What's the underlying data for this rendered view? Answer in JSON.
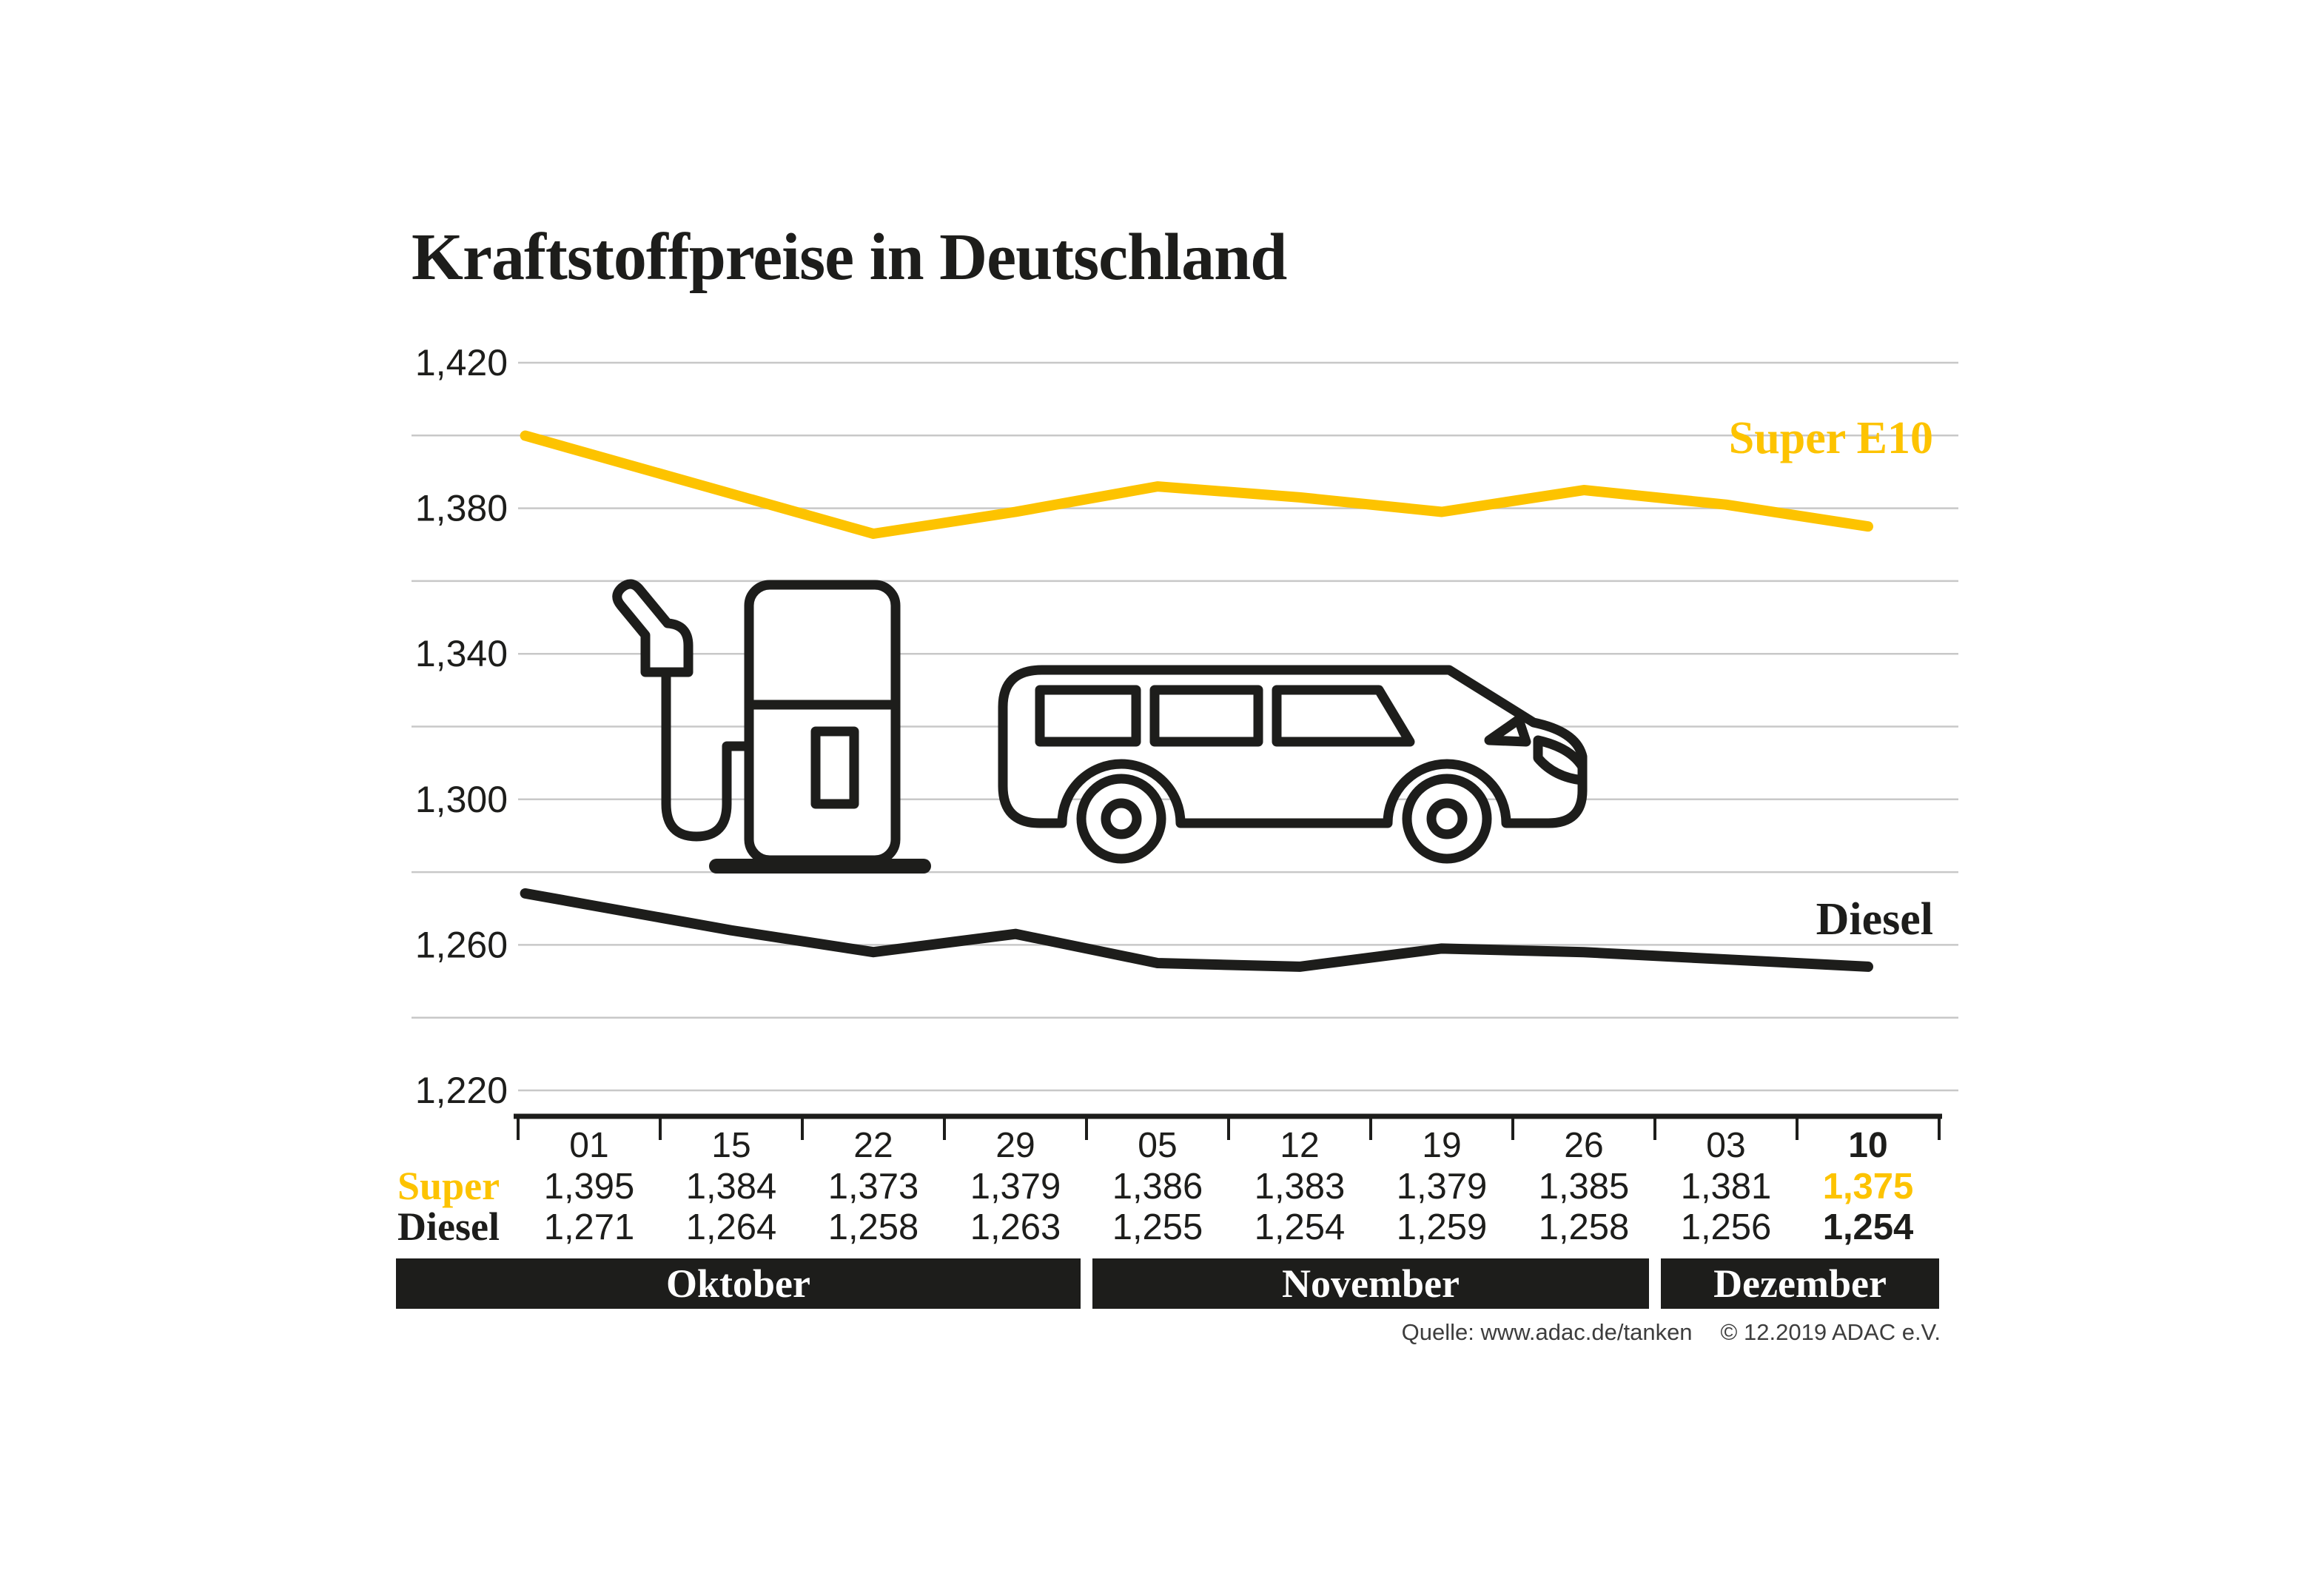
{
  "title": "Kraftstoffpreise in Deutschland",
  "source": {
    "quelle": "Quelle: www.adac.de/tanken",
    "copyright": "© 12.2019  ADAC e.V."
  },
  "colors": {
    "super_yellow": "#fdc300",
    "diesel_black": "#1d1d1b",
    "grid_gray": "#c8c8c8"
  },
  "icons": {
    "pump": "fuel-pump-icon",
    "car": "car-icon"
  },
  "table": {
    "row_labels": [
      "Super",
      "Diesel"
    ]
  },
  "chart_data": {
    "type": "line",
    "title": "Kraftstoffpreise in Deutschland",
    "x": [
      "01",
      "15",
      "22",
      "29",
      "05",
      "12",
      "19",
      "26",
      "03",
      "10"
    ],
    "months": [
      {
        "label": "Oktober",
        "span": 4
      },
      {
        "label": "November",
        "span": 4
      },
      {
        "label": "Dezember",
        "span": 2
      }
    ],
    "series": [
      {
        "name": "Super E10",
        "color": "#fdc300",
        "values": [
          1.395,
          1.384,
          1.373,
          1.379,
          1.386,
          1.383,
          1.379,
          1.385,
          1.381,
          1.375
        ]
      },
      {
        "name": "Diesel",
        "color": "#1d1d1b",
        "values": [
          1.271,
          1.264,
          1.258,
          1.263,
          1.255,
          1.254,
          1.259,
          1.258,
          1.256,
          1.254
        ]
      }
    ],
    "ylim": [
      1.22,
      1.42
    ],
    "ytick_step": 0.02,
    "ylabel_step": 0.04,
    "yticklabels": [
      "1,420",
      "1,380",
      "1,340",
      "1,300",
      "1,260",
      "1,220"
    ],
    "grid": true,
    "legend_position": "inline-right",
    "xlabel": "",
    "ylabel": ""
  }
}
